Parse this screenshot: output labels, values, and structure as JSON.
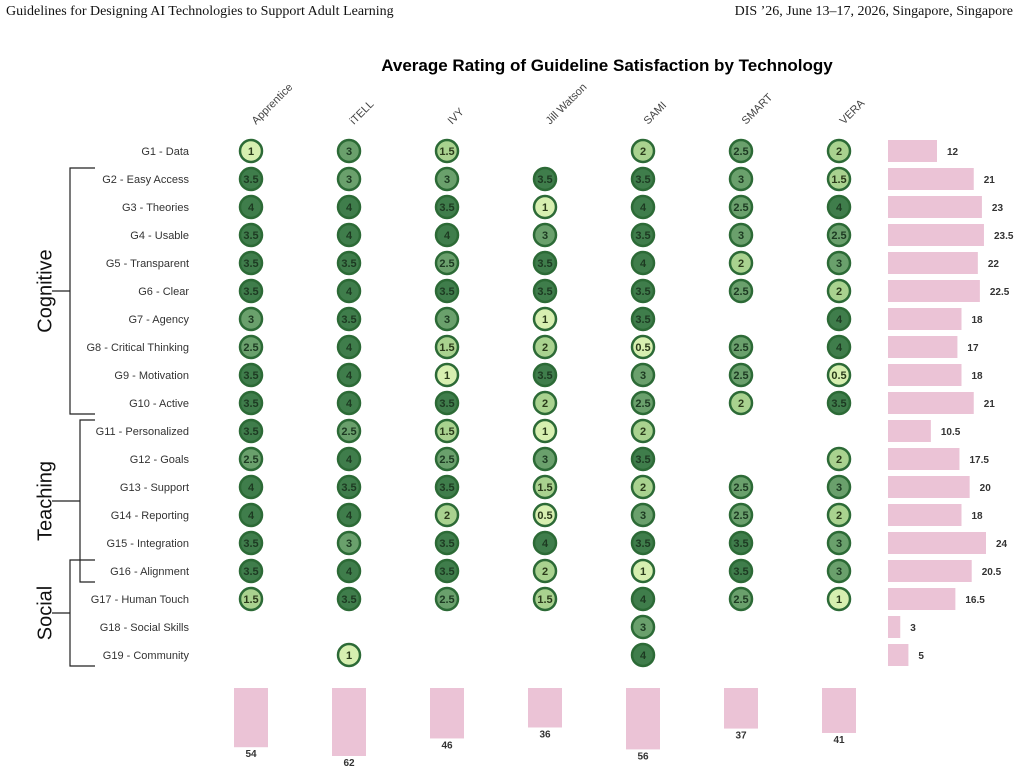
{
  "header": {
    "left": "Guidelines for Designing AI Technologies to Support Adult Learning",
    "right": "DIS ’26, June 13–17, 2026, Singapore, Singapore"
  },
  "colors": {
    "high": "#3f7d4b",
    "mid": "#6aa06c",
    "low": "#a9d28f",
    "lowest": "#d7efb0",
    "ring": "#2c6a36",
    "bar": "#ebc3d6",
    "text": "#333333"
  },
  "chart_data": {
    "type": "table",
    "title": "Average Rating of Guideline Satisfaction by Technology",
    "technologies": [
      "Apprentice",
      "iTELL",
      "IVY",
      "Jill Watson",
      "SAMI",
      "SMART",
      "VERA"
    ],
    "guidelines": [
      "G1 - Data",
      "G2 - Easy Access",
      "G3 - Theories",
      "G4 - Usable",
      "G5 - Transparent",
      "G6 - Clear",
      "G7 - Agency",
      "G8 - Critical Thinking",
      "G9 - Motivation",
      "G10 - Active",
      "G11 - Personalized",
      "G12 - Goals",
      "G13 - Support",
      "G14 - Reporting",
      "G15 - Integration",
      "G16 - Alignment",
      "G17 - Human Touch",
      "G18 - Social Skills",
      "G19 - Community"
    ],
    "ratings": [
      [
        1,
        3,
        1.5,
        null,
        2,
        2.5,
        2
      ],
      [
        3.5,
        3,
        3,
        3.5,
        3.5,
        3,
        1.5
      ],
      [
        4,
        4,
        3.5,
        1,
        4,
        2.5,
        4
      ],
      [
        3.5,
        4,
        4,
        3,
        3.5,
        3,
        2.5
      ],
      [
        3.5,
        3.5,
        2.5,
        3.5,
        4,
        2,
        3
      ],
      [
        3.5,
        4,
        3.5,
        3.5,
        3.5,
        2.5,
        2
      ],
      [
        3,
        3.5,
        3,
        1,
        3.5,
        null,
        4
      ],
      [
        2.5,
        4,
        1.5,
        2,
        0.5,
        2.5,
        4
      ],
      [
        3.5,
        4,
        1,
        3.5,
        3,
        2.5,
        0.5
      ],
      [
        3.5,
        4,
        3.5,
        2,
        2.5,
        2,
        3.5
      ],
      [
        3.5,
        2.5,
        1.5,
        1,
        2,
        null,
        null
      ],
      [
        2.5,
        4,
        2.5,
        3,
        3.5,
        null,
        2
      ],
      [
        4,
        3.5,
        3.5,
        1.5,
        2,
        2.5,
        3
      ],
      [
        4,
        4,
        2,
        0.5,
        3,
        2.5,
        2
      ],
      [
        3.5,
        3,
        3.5,
        4,
        3.5,
        3.5,
        3
      ],
      [
        3.5,
        4,
        3.5,
        2,
        1,
        3.5,
        3
      ],
      [
        1.5,
        3.5,
        2.5,
        1.5,
        4,
        2.5,
        1
      ],
      [
        null,
        null,
        null,
        null,
        3,
        null,
        null
      ],
      [
        null,
        1,
        null,
        null,
        4,
        null,
        null
      ]
    ],
    "row_totals": [
      12,
      21,
      23,
      23.5,
      22,
      22.5,
      18,
      17,
      18,
      21,
      10.5,
      17.5,
      20,
      18,
      24,
      20.5,
      16.5,
      3,
      5
    ],
    "column_totals": [
      54,
      62,
      46,
      36,
      56,
      37,
      41
    ],
    "groups": [
      {
        "label": "Cognitive",
        "first": 1,
        "last": 9
      },
      {
        "label": "Teaching",
        "first": 10,
        "last": 15
      },
      {
        "label": "Social",
        "first": 15,
        "last": 18
      }
    ]
  }
}
